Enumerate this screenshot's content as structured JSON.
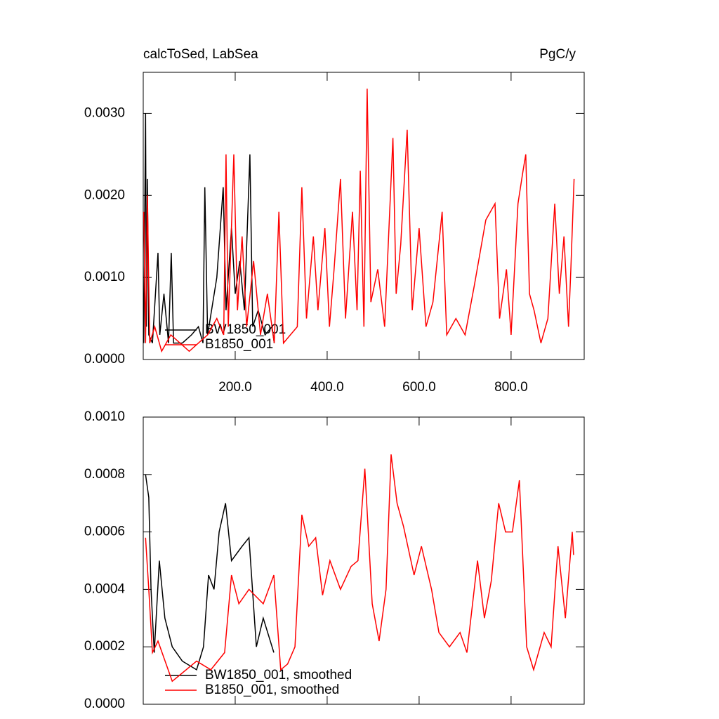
{
  "chart_data": [
    {
      "type": "line",
      "title": "calcToSed, LabSea",
      "units": "PgC/y",
      "xlim": [
        0,
        959
      ],
      "ylim": [
        0,
        0.0035
      ],
      "xticks": [
        {
          "value": 200,
          "label": "200.0"
        },
        {
          "value": 400,
          "label": "400.0"
        },
        {
          "value": 600,
          "label": "600.0"
        },
        {
          "value": 800,
          "label": "800.0"
        }
      ],
      "yticks": [
        {
          "value": 0,
          "label": "0.0000"
        },
        {
          "value": 0.001,
          "label": "0.0010"
        },
        {
          "value": 0.002,
          "label": "0.0020"
        },
        {
          "value": 0.003,
          "label": "0.0030"
        }
      ],
      "series": [
        {
          "name": "BW1850_001",
          "color": "#000000",
          "x": [
            1,
            5,
            7,
            9,
            12,
            20,
            32,
            36,
            45,
            55,
            61,
            66,
            85,
            105,
            120,
            130,
            134,
            140,
            160,
            174,
            180,
            192,
            200,
            210,
            220,
            232,
            238,
            250,
            265,
            280,
            285
          ],
          "values": [
            0.0002,
            0.003,
            0.0004,
            0.0022,
            0.0003,
            0.0002,
            0.0013,
            0.0003,
            0.0008,
            0.0002,
            0.0013,
            0.0002,
            0.0002,
            0.0003,
            0.0004,
            0.0002,
            0.0021,
            0.0003,
            0.001,
            0.0021,
            0.0006,
            0.0016,
            0.0008,
            0.0012,
            0.0006,
            0.0025,
            0.0004,
            0.0006,
            0.0003,
            0.0004,
            0.0002
          ]
        },
        {
          "name": "B1850_001",
          "color": "#ff0000",
          "x": [
            1,
            5,
            9,
            14,
            25,
            40,
            60,
            80,
            100,
            120,
            140,
            160,
            175,
            180,
            185,
            197,
            205,
            215,
            225,
            240,
            255,
            270,
            285,
            295,
            305,
            320,
            335,
            345,
            355,
            370,
            380,
            395,
            405,
            415,
            429,
            440,
            455,
            465,
            472,
            480,
            487,
            495,
            510,
            525,
            543,
            550,
            560,
            574,
            585,
            600,
            615,
            630,
            650,
            660,
            680,
            700,
            720,
            745,
            765,
            775,
            790,
            800,
            815,
            826,
            832,
            840,
            850,
            865,
            880,
            895,
            905,
            915,
            925,
            930,
            937
          ],
          "values": [
            0.0018,
            0.0002,
            0.002,
            0.0002,
            0.0004,
            0.0001,
            0.0003,
            0.0002,
            0.0001,
            0.0002,
            0.0003,
            0.0005,
            0.0003,
            0.0025,
            0.0004,
            0.0025,
            0.0006,
            0.0015,
            0.0004,
            0.0012,
            0.0003,
            0.0008,
            0.0002,
            0.0018,
            0.0002,
            0.0003,
            0.0004,
            0.0021,
            0.0005,
            0.0015,
            0.0006,
            0.0016,
            0.0004,
            0.0011,
            0.0022,
            0.0005,
            0.0018,
            0.0006,
            0.0023,
            0.0004,
            0.0033,
            0.0007,
            0.0011,
            0.0004,
            0.0027,
            0.0008,
            0.0014,
            0.0028,
            0.0006,
            0.0016,
            0.0004,
            0.0007,
            0.0018,
            0.0003,
            0.0005,
            0.0003,
            0.0009,
            0.0017,
            0.0019,
            0.0005,
            0.0011,
            0.0003,
            0.0019,
            0.0023,
            0.0025,
            0.0008,
            0.0006,
            0.0002,
            0.0005,
            0.0019,
            0.0008,
            0.0015,
            0.0004,
            0.0011,
            0.0022
          ]
        }
      ]
    },
    {
      "type": "line",
      "xlim": [
        0,
        959
      ],
      "ylim": [
        0,
        0.001
      ],
      "xticks": [
        200,
        400,
        600,
        800
      ],
      "yticks": [
        {
          "value": 0,
          "label": "0.0000"
        },
        {
          "value": 0.0002,
          "label": "0.0002"
        },
        {
          "value": 0.0004,
          "label": "0.0004"
        },
        {
          "value": 0.0006,
          "label": "0.0006"
        },
        {
          "value": 0.0008,
          "label": "0.0008"
        },
        {
          "value": 0.001,
          "label": "0.0010"
        }
      ],
      "series": [
        {
          "name": "BW1850_001, smoothed",
          "color": "#000000",
          "x": [
            5,
            12,
            17,
            24,
            35,
            47,
            63,
            85,
            116,
            131,
            142,
            154,
            165,
            179,
            192,
            215,
            230,
            246,
            261,
            284
          ],
          "values": [
            0.0008,
            0.00072,
            0.0004,
            0.00018,
            0.0005,
            0.0003,
            0.0002,
            0.00015,
            0.00012,
            0.0002,
            0.00045,
            0.0004,
            0.0006,
            0.0007,
            0.0005,
            0.00055,
            0.00058,
            0.0002,
            0.0003,
            0.00018
          ]
        },
        {
          "name": "B1850_001, smoothed",
          "color": "#ff0000",
          "x": [
            5,
            12,
            20,
            32,
            63,
            116,
            147,
            177,
            192,
            208,
            230,
            261,
            284,
            299,
            314,
            330,
            345,
            360,
            375,
            390,
            406,
            429,
            452,
            467,
            482,
            498,
            513,
            528,
            539,
            552,
            566,
            589,
            605,
            627,
            643,
            666,
            689,
            704,
            727,
            742,
            757,
            773,
            788,
            803,
            818,
            834,
            849,
            872,
            887,
            902,
            918,
            933,
            936
          ],
          "values": [
            0.00058,
            0.0004,
            0.00018,
            0.00022,
            8e-05,
            0.00015,
            0.00012,
            0.00018,
            0.00045,
            0.00035,
            0.0004,
            0.00035,
            0.00045,
            0.00012,
            0.00014,
            0.0002,
            0.00066,
            0.00055,
            0.00058,
            0.00038,
            0.0005,
            0.0004,
            0.00048,
            0.0005,
            0.00082,
            0.00035,
            0.00022,
            0.0004,
            0.00087,
            0.0007,
            0.00062,
            0.00045,
            0.00055,
            0.0004,
            0.00025,
            0.0002,
            0.00025,
            0.00018,
            0.0005,
            0.0003,
            0.00043,
            0.0007,
            0.0006,
            0.0006,
            0.00078,
            0.0002,
            0.00012,
            0.00025,
            0.0002,
            0.00055,
            0.0003,
            0.0006,
            0.00052
          ]
        }
      ]
    }
  ]
}
